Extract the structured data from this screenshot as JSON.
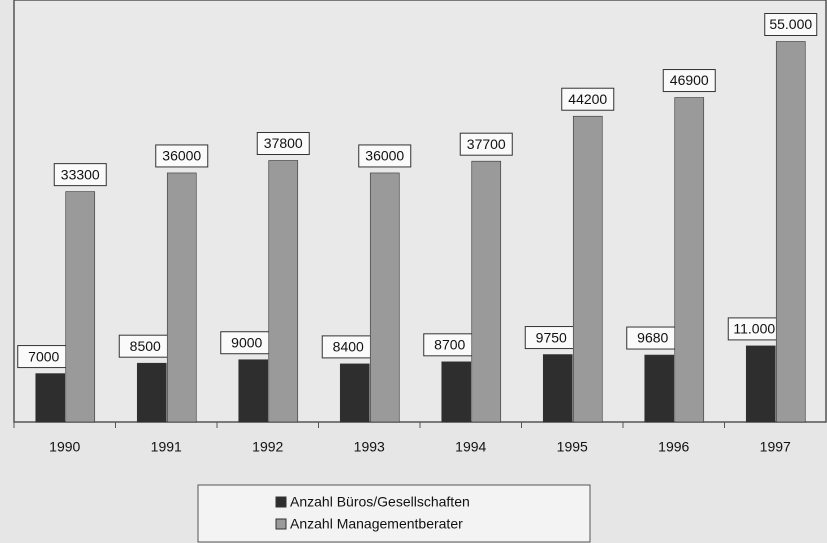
{
  "chart_data": {
    "type": "bar",
    "categories": [
      "1990",
      "1991",
      "1992",
      "1993",
      "1994",
      "1995",
      "1996",
      "1997"
    ],
    "series": [
      {
        "name": "Anzahl Büros/Gesellschaften",
        "color": "#2e2e2e",
        "values": [
          7000,
          8500,
          9000,
          8400,
          8700,
          9750,
          9680,
          11000
        ],
        "value_labels": [
          "7000",
          "8500",
          "9000",
          "8400",
          "8700",
          "9750",
          "9680",
          "11.000"
        ]
      },
      {
        "name": "Anzahl Managementberater",
        "color": "#9a9a9a",
        "values": [
          33300,
          36000,
          37800,
          36000,
          37700,
          44200,
          46900,
          55000
        ],
        "value_labels": [
          "33300",
          "36000",
          "37800",
          "36000",
          "37700",
          "44200",
          "46900",
          "55.000"
        ]
      }
    ],
    "ylim": [
      0,
      61000
    ],
    "legend": "bottom"
  }
}
